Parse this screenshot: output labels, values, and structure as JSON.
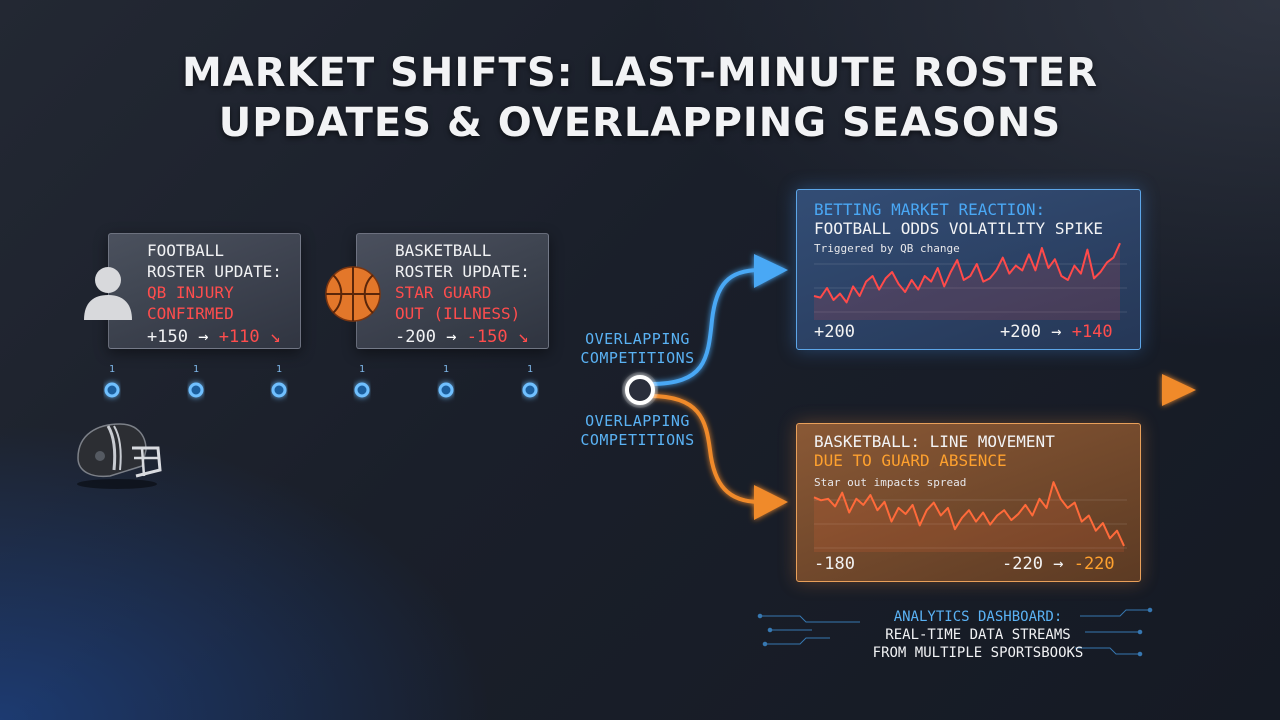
{
  "title": {
    "line1": "MARKET SHIFTS: LAST-MINUTE ROSTER",
    "line2": "UPDATES & OVERLAPPING SEASONS"
  },
  "football_card": {
    "line1": "FOOTBALL",
    "line2": "ROSTER UPDATE:",
    "line3": "QB INJURY",
    "line4": "CONFIRMED",
    "odds_from": "+150",
    "arrow": "→",
    "odds_to": "+110",
    "trend_glyph": "↘"
  },
  "basketball_card": {
    "line1": "BASKETBALL",
    "line2": "ROSTER UPDATE:",
    "line3": "STAR GUARD",
    "line4": "OUT (ILLNESS)",
    "odds_from": "-200",
    "arrow": "→",
    "odds_to": "-150",
    "trend_glyph": "↘"
  },
  "timeline": {
    "tick_label": "1"
  },
  "overlap_top": {
    "line1": "OVERLAPPING",
    "line2": "COMPETITIONS"
  },
  "overlap_bottom": {
    "line1": "OVERLAPPING",
    "line2": "COMPETITIONS"
  },
  "football_panel": {
    "title1": "BETTING MARKET REACTION:",
    "title2": "FOOTBALL ODDS VOLATILITY SPIKE",
    "subtitle": "Triggered by QB change",
    "left_label": "+200",
    "right_from": "+200",
    "arrow": "→",
    "right_to": "+140"
  },
  "basketball_panel": {
    "title1": "BASKETBALL: LINE MOVEMENT",
    "title2": "DUE TO GUARD ABSENCE",
    "subtitle": "Star out impacts spread",
    "left_label": "-180",
    "right_from": "-220",
    "arrow": "→",
    "right_to": "-220"
  },
  "dashboard": {
    "line1": "ANALYTICS DASHBOARD:",
    "line2": "REAL-TIME DATA STREAMS",
    "line3": "FROM MULTIPLE SPORTSBOOKS"
  },
  "colors": {
    "blue_accent": "#4aa8f5",
    "orange_accent": "#f08a2c",
    "red_value": "#ff4d4d",
    "orange_value": "#ffa12e"
  },
  "icons": [
    "person-icon",
    "basketball-icon",
    "football-helmet-icon",
    "trend-down-icon"
  ],
  "sparkline_football": [
    0.3,
    0.28,
    0.4,
    0.25,
    0.33,
    0.22,
    0.42,
    0.3,
    0.48,
    0.55,
    0.38,
    0.52,
    0.6,
    0.45,
    0.35,
    0.5,
    0.38,
    0.55,
    0.48,
    0.65,
    0.42,
    0.6,
    0.75,
    0.5,
    0.55,
    0.7,
    0.48,
    0.52,
    0.62,
    0.78,
    0.58,
    0.68,
    0.62,
    0.82,
    0.62,
    0.9,
    0.65,
    0.76,
    0.55,
    0.5,
    0.68,
    0.58,
    0.88,
    0.52,
    0.6,
    0.72,
    0.78,
    0.96
  ],
  "sparkline_basketball": [
    0.72,
    0.68,
    0.7,
    0.6,
    0.78,
    0.52,
    0.7,
    0.62,
    0.75,
    0.55,
    0.66,
    0.4,
    0.58,
    0.5,
    0.62,
    0.35,
    0.55,
    0.65,
    0.48,
    0.58,
    0.3,
    0.45,
    0.55,
    0.4,
    0.52,
    0.36,
    0.48,
    0.55,
    0.42,
    0.5,
    0.62,
    0.48,
    0.7,
    0.58,
    0.92,
    0.7,
    0.58,
    0.65,
    0.4,
    0.48,
    0.28,
    0.38,
    0.18,
    0.28,
    0.08
  ]
}
